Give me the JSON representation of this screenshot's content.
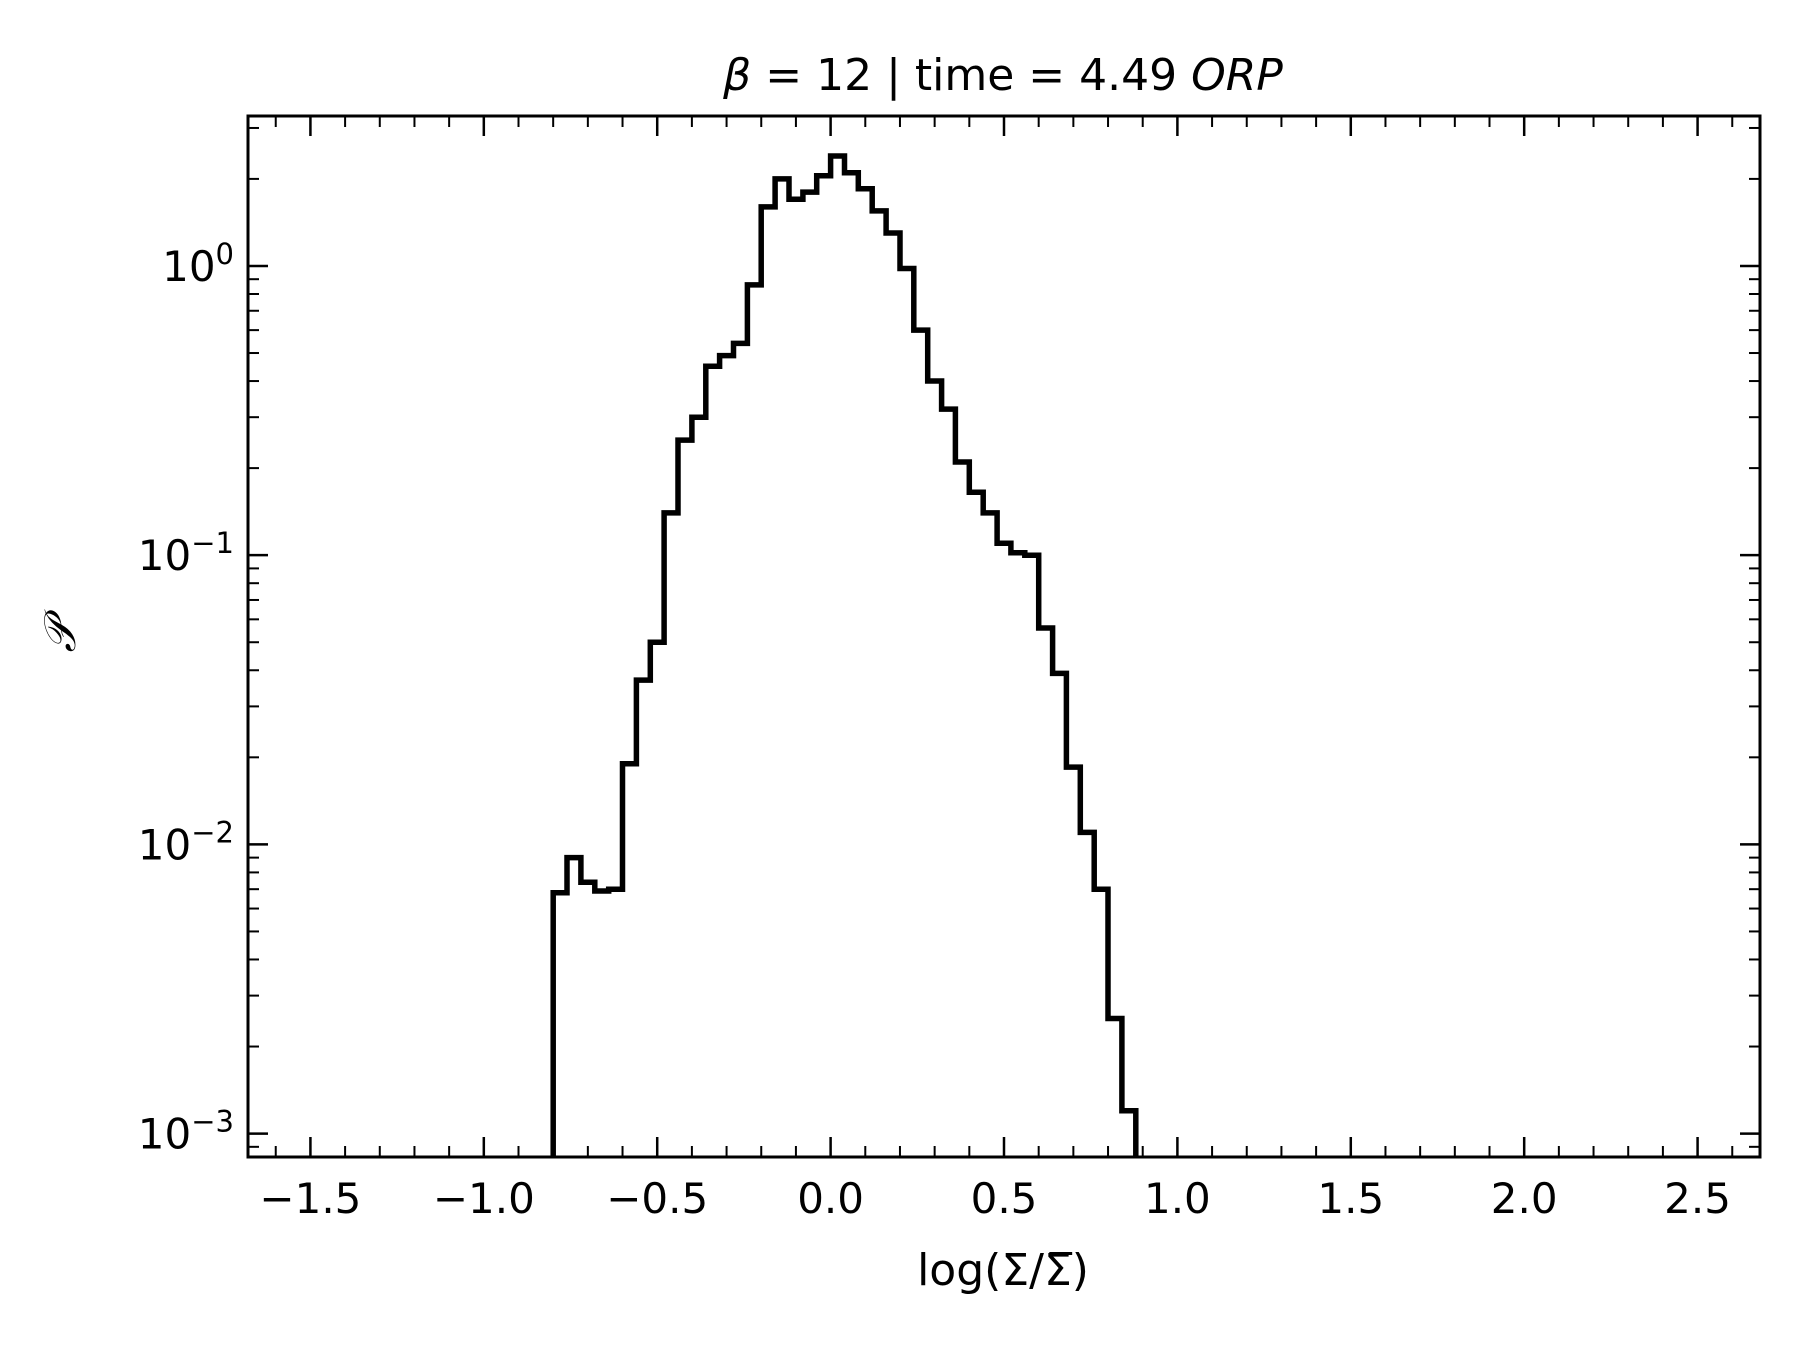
{
  "chart_data": {
    "type": "step",
    "title_parts": {
      "beta_symbol": "β",
      "rest": " = 12 | time = 4.49 ",
      "unit": "ORP"
    },
    "xlabel": "log(Σ/Σ̅)",
    "ylabel": "𝒫",
    "xlim": [
      -1.68,
      2.68
    ],
    "ylim": [
      0.00083,
      3.3
    ],
    "yscale": "log",
    "xticks": [
      -1.5,
      -1.0,
      -0.5,
      0.0,
      0.5,
      1.0,
      1.5,
      2.0,
      2.5
    ],
    "xtick_labels": [
      "−1.5",
      "−1.0",
      "−0.5",
      "0.0",
      "0.5",
      "1.0",
      "1.5",
      "2.0",
      "2.5"
    ],
    "yticks": [
      0.001,
      0.01,
      0.1,
      1
    ],
    "ytick_labels": [
      {
        "base": "10",
        "exp": "−3"
      },
      {
        "base": "10",
        "exp": "−2"
      },
      {
        "base": "10",
        "exp": "−1"
      },
      {
        "base": "10",
        "exp": "0"
      }
    ],
    "bin_edges": [
      -0.8,
      -0.76,
      -0.72,
      -0.68,
      -0.64,
      -0.6,
      -0.56,
      -0.52,
      -0.48,
      -0.44,
      -0.4,
      -0.36,
      -0.32,
      -0.28,
      -0.24,
      -0.2,
      -0.16,
      -0.12,
      -0.08,
      -0.04,
      0.0,
      0.04,
      0.08,
      0.12,
      0.16,
      0.2,
      0.24,
      0.28,
      0.32,
      0.36,
      0.4,
      0.44,
      0.48,
      0.52,
      0.56,
      0.6,
      0.64,
      0.68,
      0.72,
      0.76,
      0.8,
      0.84,
      0.88
    ],
    "values": [
      0.0068,
      0.009,
      0.0074,
      0.0069,
      0.007,
      0.019,
      0.037,
      0.05,
      0.14,
      0.25,
      0.3,
      0.45,
      0.49,
      0.54,
      0.86,
      1.6,
      2.0,
      1.7,
      1.8,
      2.05,
      2.4,
      2.1,
      1.85,
      1.55,
      1.3,
      0.98,
      0.6,
      0.4,
      0.32,
      0.21,
      0.165,
      0.14,
      0.11,
      0.102,
      0.1,
      0.056,
      0.039,
      0.0185,
      0.011,
      0.007,
      0.0025,
      0.0012
    ],
    "line_color": "#000000",
    "grid": false
  }
}
